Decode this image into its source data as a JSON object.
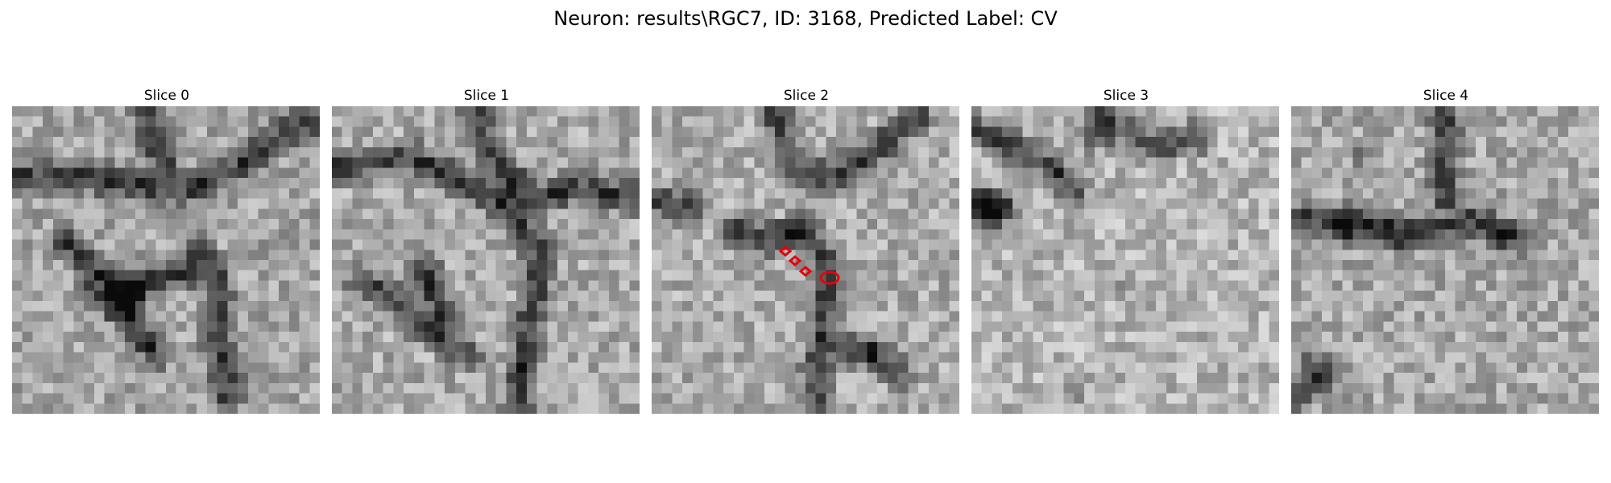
{
  "figure": {
    "title": "Neuron: results\\RGC7, ID: 3168, Predicted Label: CV"
  },
  "slices": [
    {
      "title": "Slice 0"
    },
    {
      "title": "Slice 1"
    },
    {
      "title": "Slice 2"
    },
    {
      "title": "Slice 3"
    },
    {
      "title": "Slice 4"
    }
  ],
  "colors": {
    "background": "#ffffff",
    "marker": "#e8000b"
  },
  "image_description": {
    "colormap": "grayscale",
    "grid": "30x30 pixel tiles per slice"
  }
}
